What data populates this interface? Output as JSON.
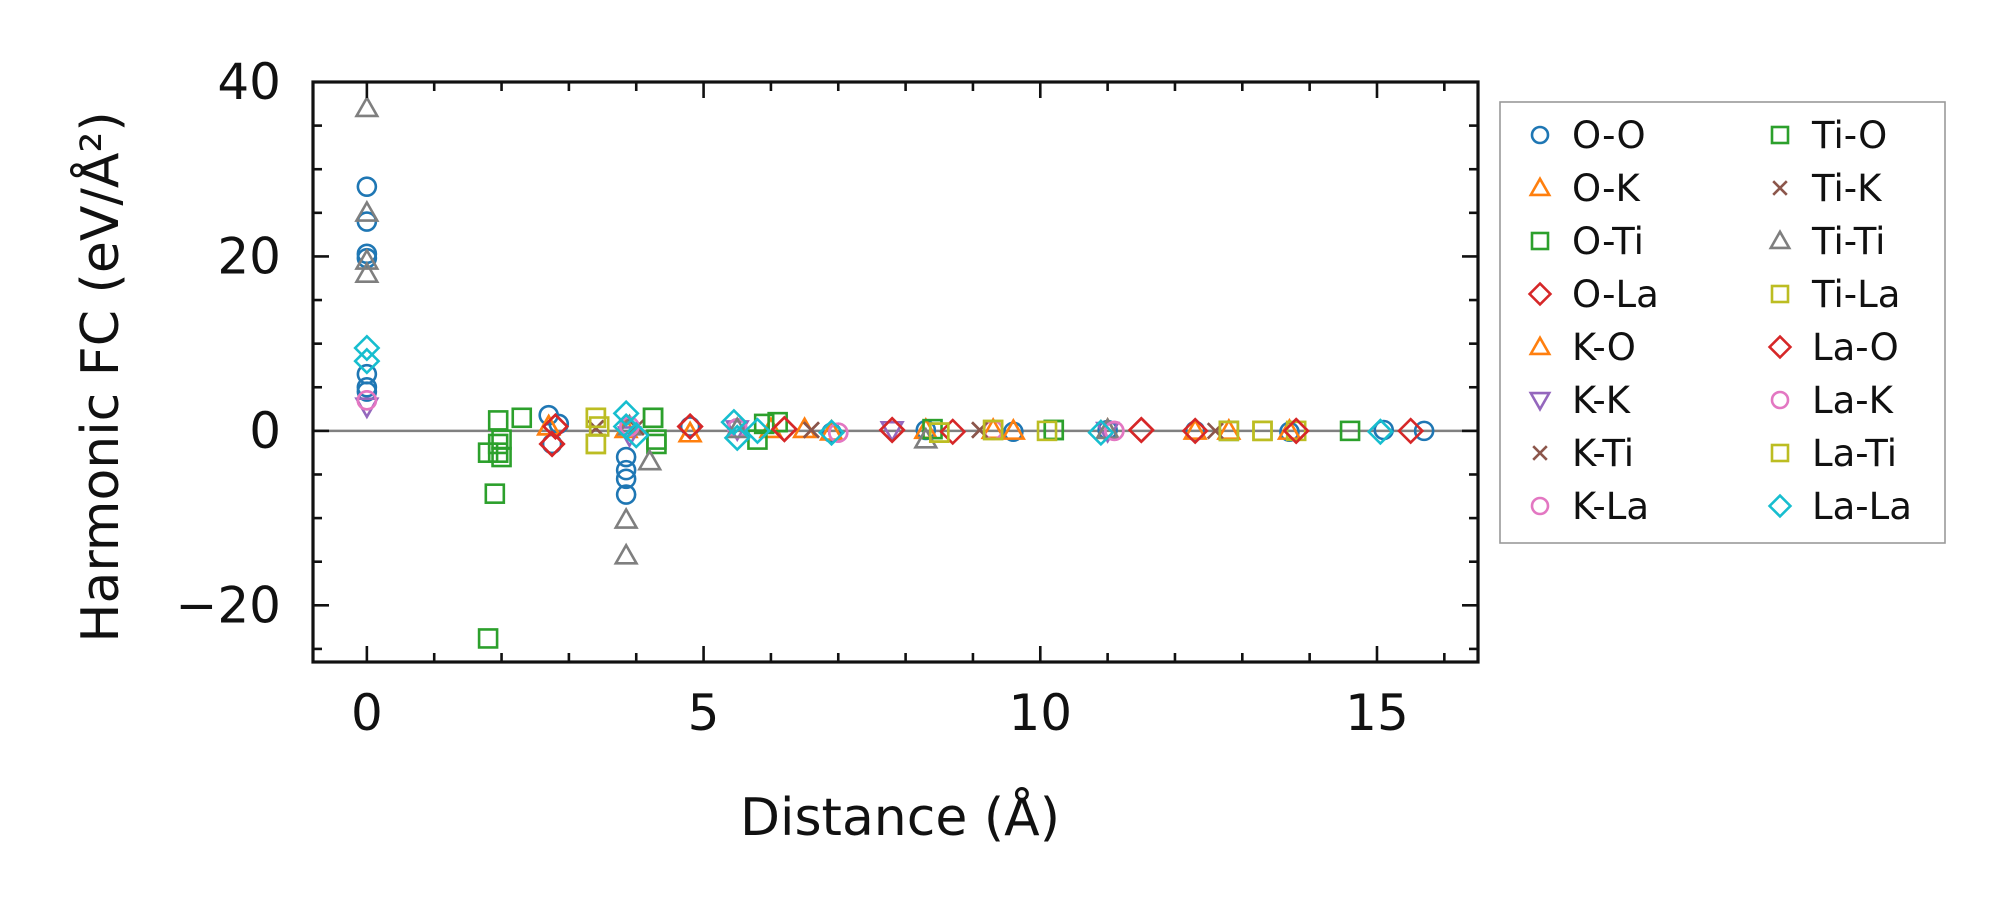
{
  "chart_data": {
    "type": "scatter",
    "title": "",
    "xlabel": "Distance (Å)",
    "ylabel": "Harmonic FC (eV/Å²)",
    "xlim": [
      -0.8,
      16.5
    ],
    "ylim": [
      -26.5,
      40
    ],
    "xticks": [
      0,
      5,
      10,
      15
    ],
    "yticks": [
      -20,
      0,
      20,
      40
    ],
    "xtick_labels": [
      "0",
      "5",
      "10",
      "15"
    ],
    "ytick_labels": [
      "−20",
      "0",
      "20",
      "40"
    ],
    "zero_line": true,
    "grid": false,
    "legend_position": "outside-right",
    "legend_columns": 2,
    "series": [
      {
        "name": "O-O",
        "marker": "circle",
        "color": "#1f77b4",
        "filled": false,
        "points": [
          [
            0,
            28
          ],
          [
            0,
            24
          ],
          [
            0,
            20.3
          ],
          [
            0,
            19.8
          ],
          [
            0,
            6.5
          ],
          [
            0,
            5
          ],
          [
            0,
            4.5
          ],
          [
            2.7,
            1.8
          ],
          [
            2.75,
            -1.5
          ],
          [
            2.85,
            0.8
          ],
          [
            3.85,
            -3
          ],
          [
            3.85,
            -4.5
          ],
          [
            3.85,
            -5.5
          ],
          [
            3.85,
            -7.3
          ],
          [
            4.8,
            0.5
          ],
          [
            5.5,
            0.3
          ],
          [
            6.9,
            -0.2
          ],
          [
            8.3,
            0.1
          ],
          [
            9.6,
            -0.1
          ],
          [
            11.0,
            0.1
          ],
          [
            12.3,
            0
          ],
          [
            13.7,
            -0.1
          ],
          [
            15.1,
            0.1
          ],
          [
            15.7,
            0
          ]
        ]
      },
      {
        "name": "O-K",
        "marker": "triangle-up",
        "color": "#ff7f0e",
        "filled": false,
        "points": [
          [
            2.7,
            0.5
          ],
          [
            3.85,
            0.2
          ],
          [
            4.8,
            -0.3
          ],
          [
            6.0,
            0.2
          ],
          [
            6.9,
            -0.1
          ],
          [
            8.3,
            0.1
          ],
          [
            9.6,
            0
          ],
          [
            11.0,
            0.1
          ],
          [
            12.3,
            0
          ],
          [
            13.7,
            0
          ]
        ]
      },
      {
        "name": "O-Ti",
        "marker": "square",
        "color": "#2ca02c",
        "filled": false,
        "points": [
          [
            1.95,
            1.2
          ],
          [
            1.95,
            -1.5
          ],
          [
            1.95,
            -2.5
          ],
          [
            2.0,
            -1.0
          ],
          [
            4.25,
            1.5
          ],
          [
            4.3,
            -1.5
          ],
          [
            5.8,
            -1.0
          ],
          [
            6.1,
            1.0
          ],
          [
            8.4,
            0.2
          ],
          [
            10.2,
            0.1
          ],
          [
            12.8,
            0
          ],
          [
            14.6,
            0
          ]
        ]
      },
      {
        "name": "O-La",
        "marker": "diamond",
        "color": "#d62728",
        "filled": false,
        "points": [
          [
            2.75,
            -1.5
          ],
          [
            2.8,
            0.5
          ],
          [
            4.8,
            0.5
          ],
          [
            6.2,
            0.2
          ],
          [
            7.8,
            0.1
          ],
          [
            8.7,
            -0.1
          ],
          [
            11.5,
            0.1
          ],
          [
            12.3,
            0
          ],
          [
            13.8,
            0
          ],
          [
            15.5,
            0
          ]
        ]
      },
      {
        "name": "K-O",
        "marker": "triangle-up",
        "color": "#ff7f0e",
        "filled": false,
        "points": [
          [
            2.7,
            0.5
          ],
          [
            4.8,
            -0.3
          ],
          [
            6.5,
            0.2
          ],
          [
            9.3,
            0.1
          ],
          [
            12.8,
            0
          ]
        ]
      },
      {
        "name": "K-K",
        "marker": "triangle-down",
        "color": "#9467bd",
        "filled": false,
        "points": [
          [
            0,
            2.8
          ],
          [
            3.9,
            -0.5
          ],
          [
            5.5,
            0.2
          ],
          [
            7.8,
            0.1
          ],
          [
            11.0,
            0
          ]
        ]
      },
      {
        "name": "K-Ti",
        "marker": "x",
        "color": "#8c564b",
        "filled": false,
        "points": [
          [
            3.4,
            0.3
          ],
          [
            4.0,
            0.4
          ],
          [
            6.6,
            0.1
          ],
          [
            9.1,
            0.1
          ],
          [
            12.6,
            0
          ]
        ]
      },
      {
        "name": "K-La",
        "marker": "circle",
        "color": "#e377c2",
        "filled": false,
        "points": [
          [
            0,
            3.5
          ],
          [
            3.9,
            0.5
          ],
          [
            5.5,
            0.3
          ],
          [
            7.0,
            -0.2
          ],
          [
            9.3,
            0.1
          ],
          [
            11.1,
            0
          ]
        ]
      },
      {
        "name": "Ti-O",
        "marker": "square",
        "color": "#2ca02c",
        "filled": false,
        "points": [
          [
            1.8,
            -23.8
          ],
          [
            1.9,
            -7.2
          ],
          [
            1.8,
            -2.5
          ],
          [
            2.0,
            -3.0
          ],
          [
            2.3,
            1.5
          ],
          [
            4.25,
            1.5
          ],
          [
            4.3,
            -1.0
          ],
          [
            5.9,
            0.8
          ],
          [
            10.2,
            0.1
          ]
        ]
      },
      {
        "name": "Ti-K",
        "marker": "x",
        "color": "#8c564b",
        "filled": false,
        "points": [
          [
            3.4,
            0.3
          ],
          [
            6.6,
            0.1
          ],
          [
            9.1,
            0.1
          ]
        ]
      },
      {
        "name": "Ti-Ti",
        "marker": "triangle-up",
        "color": "#7f7f7f",
        "filled": false,
        "points": [
          [
            0,
            37
          ],
          [
            0,
            25
          ],
          [
            0,
            19.5
          ],
          [
            0,
            18
          ],
          [
            3.85,
            -10.2
          ],
          [
            3.85,
            -14.3
          ],
          [
            4.2,
            -3.5
          ],
          [
            3.9,
            0.5
          ],
          [
            5.5,
            0.2
          ],
          [
            8.3,
            -1.0
          ],
          [
            11.0,
            0.1
          ]
        ]
      },
      {
        "name": "Ti-La",
        "marker": "square",
        "color": "#bcbd22",
        "filled": false,
        "points": [
          [
            3.4,
            1.5
          ],
          [
            3.4,
            -1.5
          ],
          [
            3.45,
            0.5
          ],
          [
            8.5,
            -0.2
          ],
          [
            9.3,
            0.1
          ],
          [
            10.1,
            0
          ],
          [
            12.8,
            0
          ],
          [
            13.3,
            0
          ],
          [
            13.8,
            0
          ]
        ]
      },
      {
        "name": "La-O",
        "marker": "diamond",
        "color": "#d62728",
        "filled": false,
        "points": [
          [
            2.75,
            -1.5
          ],
          [
            2.8,
            0.5
          ],
          [
            4.8,
            0.5
          ],
          [
            6.2,
            0.2
          ],
          [
            7.8,
            0.1
          ],
          [
            11.5,
            0.1
          ],
          [
            13.8,
            0
          ]
        ]
      },
      {
        "name": "La-K",
        "marker": "circle",
        "color": "#e377c2",
        "filled": false,
        "points": [
          [
            0,
            3.5
          ],
          [
            3.9,
            0.5
          ],
          [
            7.0,
            -0.2
          ],
          [
            11.1,
            0
          ]
        ]
      },
      {
        "name": "La-Ti",
        "marker": "square",
        "color": "#bcbd22",
        "filled": false,
        "points": [
          [
            3.4,
            1.5
          ],
          [
            3.4,
            -1.5
          ],
          [
            8.5,
            -0.2
          ],
          [
            9.3,
            0.1
          ],
          [
            13.3,
            0
          ]
        ]
      },
      {
        "name": "La-La",
        "marker": "diamond",
        "color": "#17becf",
        "filled": false,
        "points": [
          [
            0,
            9.5
          ],
          [
            0,
            8
          ],
          [
            3.85,
            2
          ],
          [
            3.85,
            0.5
          ],
          [
            4.0,
            -0.5
          ],
          [
            5.45,
            1.0
          ],
          [
            5.5,
            -0.8
          ],
          [
            5.8,
            0
          ],
          [
            6.9,
            -0.2
          ],
          [
            10.9,
            -0.2
          ],
          [
            15.05,
            -0.1
          ]
        ]
      }
    ]
  }
}
